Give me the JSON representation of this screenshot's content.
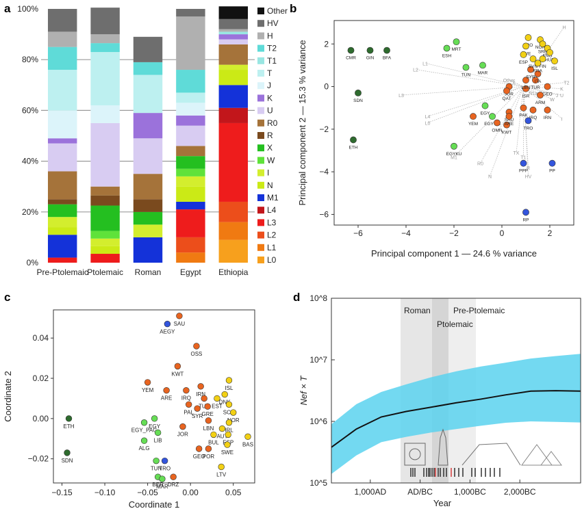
{
  "panels": {
    "a": "a",
    "b": "b",
    "c": "c",
    "d": "d"
  },
  "chart_data": [
    {
      "id": "a",
      "type": "bar",
      "stacked": true,
      "categories": [
        "Pre-Ptolemaic",
        "Ptolemaic",
        "Roman",
        "Egypt",
        "Ethiopia"
      ],
      "ylim": [
        0,
        100
      ],
      "yticks": [
        "0%",
        "20%",
        "40%",
        "60%",
        "80%",
        "100%"
      ],
      "grid": true,
      "legend": "right",
      "series": [
        {
          "name": "L0",
          "color": "#F7A01D",
          "values": [
            0,
            0,
            0,
            0,
            9
          ]
        },
        {
          "name": "L1",
          "color": "#F07A12",
          "values": [
            0,
            0,
            0,
            4,
            7
          ]
        },
        {
          "name": "L2",
          "color": "#EC4E1B",
          "values": [
            0,
            0,
            0,
            6,
            8
          ]
        },
        {
          "name": "L3",
          "color": "#EE1C1C",
          "values": [
            2,
            3.5,
            0,
            11,
            31
          ]
        },
        {
          "name": "L4",
          "color": "#C2161B",
          "values": [
            0,
            0,
            0,
            0,
            6
          ]
        },
        {
          "name": "M1",
          "color": "#1432D9",
          "values": [
            9,
            0,
            10,
            3,
            9
          ]
        },
        {
          "name": "N",
          "color": "#CBEA16",
          "values": [
            3,
            3,
            0,
            6,
            6
          ]
        },
        {
          "name": "I",
          "color": "#D3EE2E",
          "values": [
            4,
            3,
            5,
            4,
            2
          ]
        },
        {
          "name": "W",
          "color": "#5FE23A",
          "values": [
            0,
            3,
            0,
            3,
            0
          ]
        },
        {
          "name": "X",
          "color": "#24BF20",
          "values": [
            5,
            10,
            5,
            5,
            0
          ]
        },
        {
          "name": "R",
          "color": "#7A4A1E",
          "values": [
            2,
            4,
            5,
            0,
            0
          ]
        },
        {
          "name": "R0",
          "color": "#A5733A",
          "values": [
            11,
            3.5,
            10,
            4,
            8
          ]
        },
        {
          "name": "U",
          "color": "#D8CCF2",
          "values": [
            11,
            25,
            14,
            8,
            2
          ]
        },
        {
          "name": "K",
          "color": "#9B72DB",
          "values": [
            2,
            0,
            10,
            4,
            2
          ]
        },
        {
          "name": "J",
          "color": "#DCF4FA",
          "values": [
            11,
            7,
            0,
            5,
            0
          ]
        },
        {
          "name": "T",
          "color": "#BDF0F0",
          "values": [
            16,
            21,
            15,
            4,
            0
          ]
        },
        {
          "name": "T1",
          "color": "#99E6E2",
          "values": [
            0,
            0,
            0,
            0,
            1
          ]
        },
        {
          "name": "T2",
          "color": "#5FDBD8",
          "values": [
            9,
            3.5,
            5,
            9,
            0
          ]
        },
        {
          "name": "H",
          "color": "#B0B0B0",
          "values": [
            6,
            3.5,
            0,
            21,
            1
          ]
        },
        {
          "name": "HV",
          "color": "#6E6E6E",
          "values": [
            9,
            10.5,
            10,
            3,
            4
          ]
        },
        {
          "name": "Other",
          "color": "#111111",
          "values": [
            0,
            0,
            0,
            0,
            5
          ]
        }
      ]
    },
    {
      "id": "b",
      "type": "scatter",
      "xlabel": "Principal component 1 — 24.6 % variance",
      "ylabel": "Principal component 2 — 15.3 % variance",
      "xlim": [
        -7,
        3
      ],
      "ylim": [
        -6.5,
        3.1
      ],
      "xticks": [
        -6,
        -4,
        -2,
        0,
        2
      ],
      "yticks": [
        -6,
        -4,
        -2,
        0,
        2
      ],
      "xtick_labels": [
        "−6",
        "−4",
        "−2",
        "0",
        "2"
      ],
      "ytick_labels": [
        "−6",
        "−4",
        "−2",
        "0",
        "2"
      ],
      "points": [
        {
          "label": "CMR",
          "x": -6.3,
          "y": 1.7,
          "color": "#2E6B2E"
        },
        {
          "label": "GIN",
          "x": -5.5,
          "y": 1.7,
          "color": "#2E6B2E"
        },
        {
          "label": "BFA",
          "x": -4.8,
          "y": 1.7,
          "color": "#2E6B2E"
        },
        {
          "label": "SDN",
          "x": -6.0,
          "y": -0.3,
          "color": "#2E6B2E"
        },
        {
          "label": "ETH",
          "x": -6.2,
          "y": -2.5,
          "color": "#2E6B2E"
        },
        {
          "label": "MRT",
          "x": -1.9,
          "y": 2.1,
          "color": "#66DD55"
        },
        {
          "label": "ESH",
          "x": -2.3,
          "y": 1.8,
          "color": "#66DD55"
        },
        {
          "label": "TUN",
          "x": -1.5,
          "y": 0.9,
          "color": "#66DD55"
        },
        {
          "label": "MAR",
          "x": -0.8,
          "y": 1.0,
          "color": "#66DD55"
        },
        {
          "label": "EGY",
          "x": -0.7,
          "y": -0.9,
          "color": "#66DD55"
        },
        {
          "label": "EGY PA",
          "x": -0.4,
          "y": -1.4,
          "color": "#66DD55"
        },
        {
          "label": "EGYKU",
          "x": -2.0,
          "y": -2.8,
          "color": "#66DD55"
        },
        {
          "label": "YEM",
          "x": -1.2,
          "y": -1.4,
          "color": "#E86420"
        },
        {
          "label": "OMN",
          "x": -0.2,
          "y": -1.7,
          "color": "#E86420"
        },
        {
          "label": "KWT",
          "x": 0.2,
          "y": -1.8,
          "color": "#E86420"
        },
        {
          "label": "SAU",
          "x": 0.3,
          "y": -1.2,
          "color": "#E86420"
        },
        {
          "label": "ARE",
          "x": 0.3,
          "y": -1.4,
          "color": "#E86420"
        },
        {
          "label": "PAK",
          "x": 0.9,
          "y": -1.0,
          "color": "#E86420"
        },
        {
          "label": "IRQ",
          "x": 1.3,
          "y": -1.1,
          "color": "#E86420"
        },
        {
          "label": "IRN",
          "x": 1.9,
          "y": -1.1,
          "color": "#E86420"
        },
        {
          "label": "TRO",
          "x": 1.1,
          "y": -1.6,
          "color": "#3355DD"
        },
        {
          "label": "JOR",
          "x": 0.3,
          "y": 0.0,
          "color": "#E86420"
        },
        {
          "label": "QAT",
          "x": 0.2,
          "y": -0.2,
          "color": "#E86420"
        },
        {
          "label": "ISR",
          "x": 1.0,
          "y": -0.1,
          "color": "#E86420"
        },
        {
          "label": "LBN",
          "x": 1.0,
          "y": 0.3,
          "color": "#E86420"
        },
        {
          "label": "TUR",
          "x": 1.4,
          "y": 0.3,
          "color": "#E86420"
        },
        {
          "label": "GEO",
          "x": 1.9,
          "y": 0.0,
          "color": "#E86420"
        },
        {
          "label": "ARM",
          "x": 1.6,
          "y": -0.4,
          "color": "#E86420"
        },
        {
          "label": "SYR",
          "x": 1.2,
          "y": 0.8,
          "color": "#E86420"
        },
        {
          "label": "ITA",
          "x": 1.5,
          "y": 0.6,
          "color": "#E86420"
        },
        {
          "label": "FRO",
          "x": 1.1,
          "y": 2.3,
          "color": "#F2D015"
        },
        {
          "label": "NOR",
          "x": 1.6,
          "y": 2.2,
          "color": "#F2D015"
        },
        {
          "label": "SRB",
          "x": 1.7,
          "y": 2.0,
          "color": "#F2D015"
        },
        {
          "label": "SWE",
          "x": 1.0,
          "y": 1.9,
          "color": "#F2D015"
        },
        {
          "label": "ENG",
          "x": 1.9,
          "y": 1.8,
          "color": "#F2D015"
        },
        {
          "label": "HUN",
          "x": 2.0,
          "y": 1.6,
          "color": "#F2D015"
        },
        {
          "label": "ESP",
          "x": 0.9,
          "y": 1.5,
          "color": "#F2D015"
        },
        {
          "label": "SVN",
          "x": 1.3,
          "y": 1.3,
          "color": "#F2D015"
        },
        {
          "label": "FIN",
          "x": 1.7,
          "y": 1.3,
          "color": "#F2D015"
        },
        {
          "label": "ISL",
          "x": 2.2,
          "y": 1.2,
          "color": "#F2D015"
        },
        {
          "label": "FRA",
          "x": 1.5,
          "y": 1.1,
          "color": "#F2D015"
        },
        {
          "label": "PPP",
          "x": 0.9,
          "y": -3.6,
          "color": "#3355DD"
        },
        {
          "label": "PP",
          "x": 2.1,
          "y": -3.6,
          "color": "#3355DD"
        },
        {
          "label": "RP",
          "x": 1.0,
          "y": -5.9,
          "color": "#3355DD"
        }
      ],
      "vectors": [
        {
          "label": "H",
          "x": 2.6,
          "y": 2.8
        },
        {
          "label": "L1",
          "x": -3.2,
          "y": 1.1
        },
        {
          "label": "L2",
          "x": -3.6,
          "y": 0.8
        },
        {
          "label": "L3",
          "x": -4.2,
          "y": -0.4
        },
        {
          "label": "L4",
          "x": -3.1,
          "y": -1.4
        },
        {
          "label": "L0",
          "x": -3.1,
          "y": -1.7
        },
        {
          "label": "Other",
          "x": 0.3,
          "y": 0.3
        },
        {
          "label": "X",
          "x": 0.5,
          "y": 0.2
        },
        {
          "label": "N1a",
          "x": 1.3,
          "y": -0.3
        },
        {
          "label": "K",
          "x": 2.5,
          "y": -0.1
        },
        {
          "label": "T2",
          "x": 2.7,
          "y": 0.2
        },
        {
          "label": "J",
          "x": 2.3,
          "y": -0.4
        },
        {
          "label": "U",
          "x": 2.5,
          "y": -0.4
        },
        {
          "label": "W",
          "x": 2.1,
          "y": -0.6
        },
        {
          "label": "I",
          "x": 2.5,
          "y": -1.5
        },
        {
          "label": "TX",
          "x": 0.6,
          "y": -3.1
        },
        {
          "label": "T1",
          "x": 0.9,
          "y": -3.3
        },
        {
          "label": "R",
          "x": 1.1,
          "y": -3.8
        },
        {
          "label": "HV",
          "x": 1.1,
          "y": -4.2
        },
        {
          "label": "R0",
          "x": -0.9,
          "y": -3.6
        },
        {
          "label": "N",
          "x": -0.5,
          "y": -4.2
        },
        {
          "label": "M1",
          "x": -2.0,
          "y": -3.3
        }
      ]
    },
    {
      "id": "c",
      "type": "scatter",
      "xlabel": "Coordinate 1",
      "ylabel": "Coordinate 2",
      "xlim": [
        -0.16,
        0.075
      ],
      "ylim": [
        -0.032,
        0.054
      ],
      "xticks": [
        -0.15,
        -0.1,
        -0.05,
        0.0,
        0.05
      ],
      "yticks": [
        -0.02,
        0.0,
        0.02,
        0.04
      ],
      "xtick_labels": [
        "−0.15",
        "−0.10",
        "−0.05",
        "0.00",
        "0.05"
      ],
      "ytick_labels": [
        "−0.02",
        "0.00",
        "0.02",
        "0.04"
      ],
      "points": [
        {
          "label": "SAU",
          "x": -0.013,
          "y": 0.051,
          "color": "#E86420"
        },
        {
          "label": "AEGY",
          "x": -0.027,
          "y": 0.047,
          "color": "#3355DD"
        },
        {
          "label": "OSS",
          "x": 0.007,
          "y": 0.036,
          "color": "#E86420"
        },
        {
          "label": "KWT",
          "x": -0.015,
          "y": 0.026,
          "color": "#E86420"
        },
        {
          "label": "YEM",
          "x": -0.05,
          "y": 0.018,
          "color": "#E86420"
        },
        {
          "label": "ARE",
          "x": -0.028,
          "y": 0.014,
          "color": "#E86420"
        },
        {
          "label": "IRQ",
          "x": -0.005,
          "y": 0.014,
          "color": "#E86420"
        },
        {
          "label": "IRN",
          "x": 0.012,
          "y": 0.016,
          "color": "#E86420"
        },
        {
          "label": "TUR",
          "x": 0.016,
          "y": 0.01,
          "color": "#E86420"
        },
        {
          "label": "PAL",
          "x": -0.002,
          "y": 0.007,
          "color": "#E86420"
        },
        {
          "label": "SYR",
          "x": 0.008,
          "y": 0.005,
          "color": "#E86420"
        },
        {
          "label": "GRE",
          "x": 0.02,
          "y": 0.006,
          "color": "#E86420"
        },
        {
          "label": "LBN",
          "x": 0.021,
          "y": -0.001,
          "color": "#E86420"
        },
        {
          "label": "JOR",
          "x": -0.009,
          "y": -0.004,
          "color": "#E86420"
        },
        {
          "label": "GEO",
          "x": 0.01,
          "y": -0.015,
          "color": "#E86420"
        },
        {
          "label": "POR",
          "x": 0.021,
          "y": -0.015,
          "color": "#E86420"
        },
        {
          "label": "ISL",
          "x": 0.045,
          "y": 0.019,
          "color": "#F2D015"
        },
        {
          "label": "DNK",
          "x": 0.04,
          "y": 0.012,
          "color": "#F2D015"
        },
        {
          "label": "EST",
          "x": 0.031,
          "y": 0.01,
          "color": "#F2D015"
        },
        {
          "label": "SCO",
          "x": 0.045,
          "y": 0.007,
          "color": "#F2D015"
        },
        {
          "label": "NOR",
          "x": 0.05,
          "y": 0.003,
          "color": "#F2D015"
        },
        {
          "label": "IRL",
          "x": 0.045,
          "y": -0.002,
          "color": "#F2D015"
        },
        {
          "label": "AUT",
          "x": 0.037,
          "y": -0.005,
          "color": "#F2D015"
        },
        {
          "label": "BUL",
          "x": 0.027,
          "y": -0.008,
          "color": "#F2D015"
        },
        {
          "label": "ESP",
          "x": 0.044,
          "y": -0.008,
          "color": "#F2D015"
        },
        {
          "label": "BAS",
          "x": 0.067,
          "y": -0.009,
          "color": "#F2D015"
        },
        {
          "label": "SWE",
          "x": 0.043,
          "y": -0.013,
          "color": "#F2D015"
        },
        {
          "label": "LTV",
          "x": 0.036,
          "y": -0.024,
          "color": "#F2D015"
        },
        {
          "label": "EGY_PAG",
          "x": -0.054,
          "y": -0.002,
          "color": "#66DD55"
        },
        {
          "label": "EGY",
          "x": -0.042,
          "y": 0.0,
          "color": "#66DD55"
        },
        {
          "label": "LIB",
          "x": -0.038,
          "y": -0.007,
          "color": "#66DD55"
        },
        {
          "label": "ALG",
          "x": -0.054,
          "y": -0.011,
          "color": "#66DD55"
        },
        {
          "label": "TUN",
          "x": -0.04,
          "y": -0.021,
          "color": "#66DD55"
        },
        {
          "label": "TRO",
          "x": -0.03,
          "y": -0.021,
          "color": "#3355DD"
        },
        {
          "label": "BER",
          "x": -0.038,
          "y": -0.029,
          "color": "#66DD55"
        },
        {
          "label": "MAR",
          "x": -0.033,
          "y": -0.03,
          "color": "#66DD55"
        },
        {
          "label": "DRZ",
          "x": -0.02,
          "y": -0.029,
          "color": "#E86420"
        },
        {
          "label": "ETH",
          "x": -0.142,
          "y": 0.0,
          "color": "#2E6B2E"
        },
        {
          "label": "SDN",
          "x": -0.144,
          "y": -0.017,
          "color": "#2E6B2E"
        }
      ]
    },
    {
      "id": "d",
      "type": "line",
      "ylabel": "Nef × T",
      "xlabel": "Year",
      "yscale": "log",
      "ylim": [
        100000,
        100000000
      ],
      "yticks": [
        "10^5",
        "10^6",
        "10^7",
        "10^8"
      ],
      "xticks": [
        "1,000AD",
        "AD/BC",
        "1,000BC",
        "2,000BC"
      ],
      "periods": [
        "Roman",
        "Ptolemaic",
        "Pre-Ptolemaic"
      ],
      "series": [
        {
          "name": "median",
          "x": [
            -2000,
            -1500,
            -1000,
            -500,
            0,
            500,
            1000,
            1500,
            2000,
            2500,
            3000
          ],
          "y": [
            380000,
            750000,
            1180000,
            1450000,
            1700000,
            2000000,
            2300000,
            2700000,
            3100000,
            3150000,
            3100000
          ]
        },
        {
          "name": "ci_low",
          "x": [
            -2000,
            -1500,
            -1000,
            -500,
            0,
            500,
            1000,
            1500,
            2000,
            2500,
            3000
          ],
          "y": [
            140000,
            280000,
            460000,
            560000,
            660000,
            750000,
            850000,
            950000,
            1000000,
            980000,
            960000
          ]
        },
        {
          "name": "ci_high",
          "x": [
            -2000,
            -1500,
            -1000,
            -500,
            0,
            500,
            1000,
            1500,
            2000,
            2500,
            3000
          ],
          "y": [
            900000,
            1900000,
            3000000,
            4000000,
            5200000,
            6500000,
            7800000,
            9000000,
            10500000,
            11500000,
            12500000
          ]
        }
      ],
      "colors": {
        "band": "#5AD2EE",
        "line": "#111111"
      }
    }
  ]
}
